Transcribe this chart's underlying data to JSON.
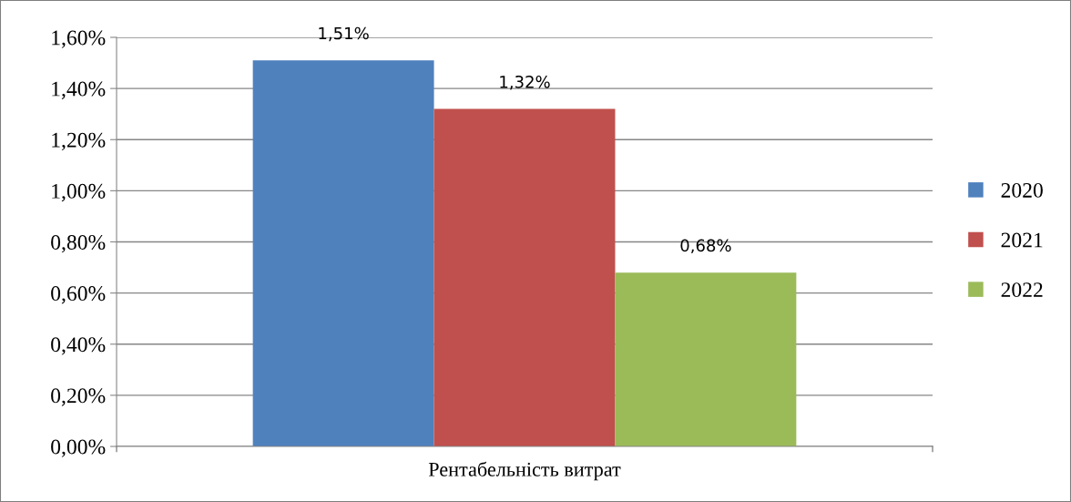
{
  "chart_data": {
    "type": "bar",
    "categories": [
      "Рентабельність витрат"
    ],
    "series": [
      {
        "name": "2020",
        "color": "#4f81bd",
        "values": [
          1.51
        ],
        "value_labels": [
          "1,51%"
        ]
      },
      {
        "name": "2021",
        "color": "#c0504d",
        "values": [
          1.32
        ],
        "value_labels": [
          "1,32%"
        ]
      },
      {
        "name": "2022",
        "color": "#9bbb59",
        "values": [
          0.68
        ],
        "value_labels": [
          "0,68%"
        ]
      }
    ],
    "ylim": [
      0,
      1.6
    ],
    "yticks": [
      {
        "value": 0,
        "label": "0,00%"
      },
      {
        "value": 0.2,
        "label": "0,20%"
      },
      {
        "value": 0.4,
        "label": "0,40%"
      },
      {
        "value": 0.6,
        "label": "0,60%"
      },
      {
        "value": 0.8,
        "label": "0,80%"
      },
      {
        "value": 1.0,
        "label": "1,00%"
      },
      {
        "value": 1.2,
        "label": "1,20%"
      },
      {
        "value": 1.4,
        "label": "1,40%"
      },
      {
        "value": 1.6,
        "label": "1,60%"
      }
    ],
    "grid": "y",
    "legend": "right"
  }
}
